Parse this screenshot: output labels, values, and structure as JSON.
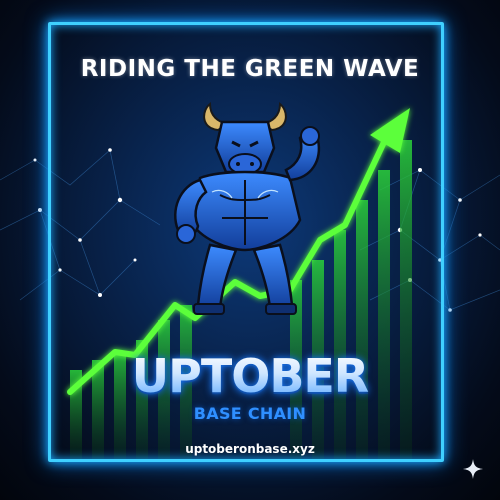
{
  "poster": {
    "headline": "RIDING THE GREEN WAVE",
    "brand": "UPTOBER",
    "subbrand": "BASE CHAIN",
    "url": "uptoberonbase.xyz"
  },
  "colors": {
    "frame": "#3fd0ff",
    "arrow": "#5cff3a",
    "bars": "#1f9a2a",
    "bull": "#1e63d6",
    "horns": "#d9b76a"
  },
  "icons": {
    "mascot": "bull-icon",
    "trend": "arrow-up-icon",
    "corner": "sparkle-icon"
  }
}
